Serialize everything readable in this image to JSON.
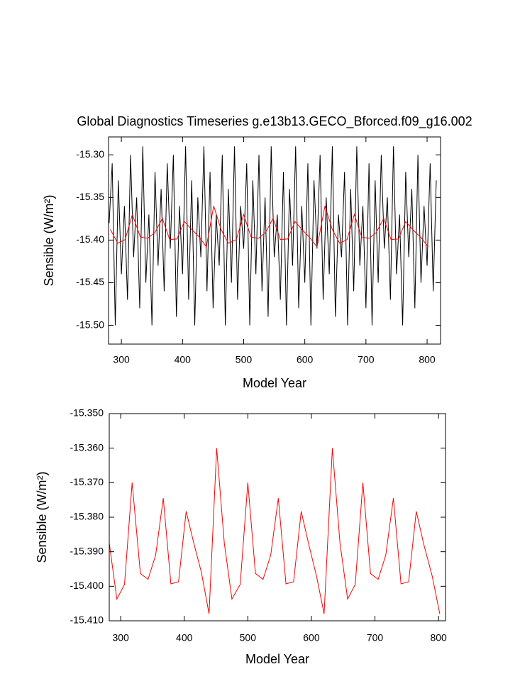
{
  "chart_data": [
    {
      "type": "line",
      "title": "Global Diagnostics Timeseries g.e13b13.GECO_Bforced.f09_g16.002",
      "x_label": "Model Year",
      "y_label": "Sensible (W/m²)",
      "xlim": [
        279,
        822
      ],
      "xticks": [
        300,
        400,
        500,
        600,
        700,
        800
      ],
      "ylim": [
        -15.522,
        -15.279
      ],
      "yticks": [
        {
          "value": -15.3,
          "label": "-15.30"
        },
        {
          "value": -15.35,
          "label": "-15.35"
        },
        {
          "value": -15.4,
          "label": "-15.40"
        },
        {
          "value": -15.45,
          "label": "-15.45"
        },
        {
          "value": -15.5,
          "label": "-15.50"
        }
      ],
      "series": [
        {
          "color": "#000000",
          "x": [
            280,
            285,
            290,
            295,
            300,
            305,
            310,
            315,
            320,
            325,
            330,
            335,
            340,
            345,
            350,
            355,
            360,
            365,
            370,
            375,
            380,
            385,
            390,
            395,
            400,
            405,
            410,
            415,
            420,
            425,
            430,
            435,
            440,
            445,
            450,
            455,
            460,
            465,
            470,
            475,
            480,
            485,
            490,
            495,
            500,
            505,
            510,
            515,
            520,
            525,
            530,
            535,
            540,
            545,
            550,
            555,
            560,
            565,
            570,
            575,
            580,
            585,
            590,
            595,
            600,
            605,
            610,
            615,
            620,
            625,
            630,
            635,
            640,
            645,
            650,
            655,
            660,
            665,
            670,
            675,
            680,
            685,
            690,
            695,
            700,
            705,
            710,
            715,
            720,
            725,
            730,
            735,
            740,
            745,
            750,
            755,
            760,
            765,
            770,
            775,
            780,
            785,
            790,
            795,
            800,
            805,
            810,
            815
          ],
          "values": [
            -15.38,
            -15.31,
            -15.5,
            -15.33,
            -15.44,
            -15.36,
            -15.47,
            -15.3,
            -15.42,
            -15.35,
            -15.48,
            -15.29,
            -15.45,
            -15.37,
            -15.5,
            -15.32,
            -15.43,
            -15.34,
            -15.46,
            -15.31,
            -15.41,
            -15.3,
            -15.49,
            -15.36,
            -15.44,
            -15.29,
            -15.47,
            -15.33,
            -15.5,
            -15.35,
            -15.42,
            -15.29,
            -15.46,
            -15.32,
            -15.48,
            -15.37,
            -15.43,
            -15.3,
            -15.5,
            -15.34,
            -15.45,
            -15.29,
            -15.47,
            -15.36,
            -15.41,
            -15.31,
            -15.5,
            -15.33,
            -15.44,
            -15.3,
            -15.46,
            -15.35,
            -15.49,
            -15.29,
            -15.42,
            -15.37,
            -15.47,
            -15.32,
            -15.5,
            -15.34,
            -15.43,
            -15.29,
            -15.48,
            -15.36,
            -15.45,
            -15.31,
            -15.5,
            -15.33,
            -15.41,
            -15.3,
            -15.47,
            -15.35,
            -15.44,
            -15.29,
            -15.49,
            -15.37,
            -15.42,
            -15.32,
            -15.5,
            -15.34,
            -15.46,
            -15.29,
            -15.43,
            -15.36,
            -15.48,
            -15.31,
            -15.5,
            -15.33,
            -15.45,
            -15.3,
            -15.41,
            -15.35,
            -15.47,
            -15.29,
            -15.44,
            -15.37,
            -15.5,
            -15.32,
            -15.42,
            -15.34,
            -15.48,
            -15.3,
            -15.45,
            -15.36,
            -15.43,
            -15.31,
            -15.46,
            -15.33
          ]
        },
        {
          "color": "#ff0000",
          "x": [
            282,
            294,
            306,
            318,
            331,
            343,
            355,
            367,
            379,
            391,
            403,
            415,
            427,
            439,
            451,
            463,
            475,
            488,
            500,
            512,
            524,
            536,
            548,
            560,
            572,
            584,
            596,
            608,
            620,
            633,
            645,
            657,
            669,
            681,
            693,
            705,
            717,
            729,
            741,
            753,
            765,
            777,
            790,
            802
          ],
          "values": [
            -15.3875,
            -15.4037,
            -15.3995,
            -15.37,
            -15.3963,
            -15.398,
            -15.391,
            -15.3745,
            -15.3993,
            -15.3987,
            -15.3783,
            -15.3875,
            -15.396,
            -15.408,
            -15.36,
            -15.3875,
            -15.4037,
            -15.3995,
            -15.37,
            -15.3963,
            -15.398,
            -15.391,
            -15.3745,
            -15.3993,
            -15.3987,
            -15.3783,
            -15.388,
            -15.397,
            -15.408,
            -15.36,
            -15.3875,
            -15.4037,
            -15.3995,
            -15.37,
            -15.3963,
            -15.398,
            -15.391,
            -15.3745,
            -15.3993,
            -15.3987,
            -15.3783,
            -15.388,
            -15.397,
            -15.408
          ]
        }
      ]
    },
    {
      "type": "line",
      "x_label": "Model Year",
      "y_label": "Sensible (W/m²)",
      "xlim": [
        282,
        811
      ],
      "xticks": [
        300,
        400,
        500,
        600,
        700,
        800
      ],
      "ylim": [
        -15.41,
        -15.35
      ],
      "yticks": [
        {
          "value": -15.35,
          "label": "-15.350"
        },
        {
          "value": -15.36,
          "label": "-15.360"
        },
        {
          "value": -15.37,
          "label": "-15.370"
        },
        {
          "value": -15.38,
          "label": "-15.380"
        },
        {
          "value": -15.39,
          "label": "-15.390"
        },
        {
          "value": -15.4,
          "label": "-15.400"
        },
        {
          "value": -15.41,
          "label": "-15.410"
        }
      ],
      "series": [
        {
          "color": "#ff0000",
          "x": [
            282,
            294,
            306,
            318,
            331,
            343,
            355,
            367,
            379,
            391,
            403,
            415,
            427,
            439,
            451,
            463,
            475,
            488,
            500,
            512,
            524,
            536,
            548,
            560,
            572,
            584,
            596,
            608,
            620,
            633,
            645,
            657,
            669,
            681,
            693,
            705,
            717,
            729,
            741,
            753,
            765,
            777,
            790,
            802
          ],
          "values": [
            -15.3875,
            -15.4037,
            -15.3995,
            -15.37,
            -15.3963,
            -15.398,
            -15.391,
            -15.3745,
            -15.3993,
            -15.3987,
            -15.3783,
            -15.3875,
            -15.396,
            -15.408,
            -15.36,
            -15.3875,
            -15.4037,
            -15.3995,
            -15.37,
            -15.3963,
            -15.398,
            -15.391,
            -15.3745,
            -15.3993,
            -15.3987,
            -15.3783,
            -15.388,
            -15.397,
            -15.408,
            -15.36,
            -15.3875,
            -15.4037,
            -15.3995,
            -15.37,
            -15.3963,
            -15.398,
            -15.391,
            -15.3745,
            -15.3993,
            -15.3987,
            -15.3783,
            -15.388,
            -15.397,
            -15.408
          ]
        }
      ]
    }
  ]
}
